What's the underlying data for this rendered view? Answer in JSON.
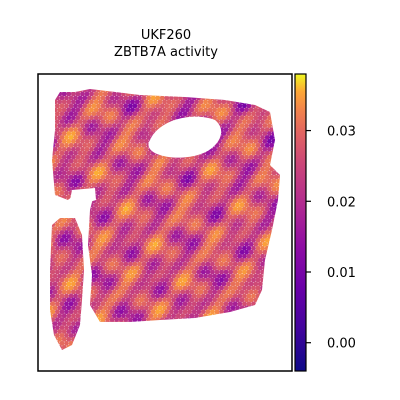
{
  "chart_data": {
    "type": "heatmap",
    "title": [
      "UKF260",
      "ZBTB7A activity"
    ],
    "xlabel": "",
    "ylabel": "",
    "colormap": "plasma",
    "colorbar": {
      "vmin": -0.004,
      "vmax": 0.038,
      "ticks": [
        0.0,
        0.01,
        0.02,
        0.03
      ],
      "tick_labels": [
        "0.00",
        "0.01",
        "0.02",
        "0.03"
      ]
    },
    "grid": false,
    "legend": "none"
  }
}
